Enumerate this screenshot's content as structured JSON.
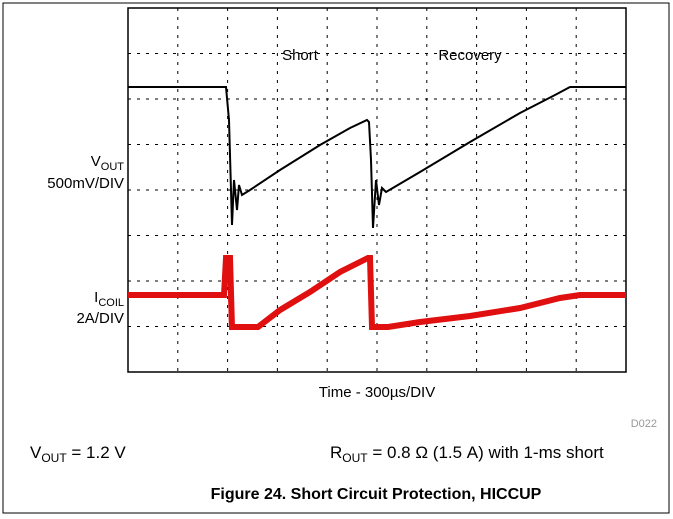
{
  "plot": {
    "annotations": [
      "Short",
      "Recovery"
    ],
    "channel_1": {
      "symbol": "V",
      "subscript": "OUT",
      "scale": "500mV/DIV"
    },
    "channel_2": {
      "symbol": "I",
      "subscript": "COIL",
      "scale": "2A/DIV"
    },
    "x_label": "Time - 300µs/DIV"
  },
  "figure_id": "D022",
  "conditions": [
    {
      "symbol": "V",
      "subscript": "OUT",
      "text": " = 1.2 V"
    },
    {
      "symbol": "R",
      "subscript": "OUT",
      "text": " = 0.8 Ω (1.5 A) with 1-ms short"
    }
  ],
  "caption": "Figure 24. Short Circuit Protection, HICCUP"
}
